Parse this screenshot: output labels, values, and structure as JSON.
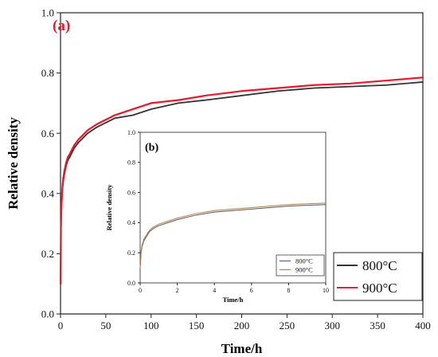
{
  "chart_data": [
    {
      "type": "line",
      "panel_label": "(a)",
      "xlabel": "Time/h",
      "ylabel": "Relative density",
      "xlim": [
        0,
        400
      ],
      "ylim": [
        0.0,
        1.0
      ],
      "xticks": [
        0,
        50,
        100,
        150,
        200,
        250,
        300,
        350,
        400
      ],
      "yticks": [
        0.0,
        0.2,
        0.4,
        0.6,
        0.8,
        1.0
      ],
      "grid": false,
      "legend_position": "bottom-right",
      "series": [
        {
          "name": "800°C",
          "color": "#333333",
          "x": [
            0,
            0.5,
            1,
            2,
            3,
            4,
            6,
            8,
            10,
            15,
            20,
            30,
            40,
            60,
            80,
            100,
            130,
            160,
            200,
            240,
            280,
            320,
            360,
            400
          ],
          "y": [
            0.1,
            0.28,
            0.35,
            0.41,
            0.44,
            0.46,
            0.49,
            0.51,
            0.52,
            0.55,
            0.57,
            0.6,
            0.62,
            0.65,
            0.66,
            0.68,
            0.7,
            0.71,
            0.725,
            0.74,
            0.75,
            0.755,
            0.76,
            0.77
          ]
        },
        {
          "name": "900°C",
          "color": "#e8192c",
          "x": [
            0,
            0.5,
            1,
            2,
            3,
            4,
            6,
            8,
            10,
            15,
            20,
            30,
            40,
            60,
            80,
            100,
            130,
            160,
            200,
            240,
            280,
            320,
            360,
            400
          ],
          "y": [
            0.1,
            0.29,
            0.36,
            0.42,
            0.45,
            0.47,
            0.5,
            0.52,
            0.53,
            0.56,
            0.58,
            0.61,
            0.63,
            0.66,
            0.68,
            0.7,
            0.71,
            0.725,
            0.74,
            0.75,
            0.76,
            0.765,
            0.775,
            0.785
          ]
        }
      ]
    },
    {
      "type": "line",
      "panel_label": "(b)",
      "xlabel": "Time/h",
      "ylabel": "Relative density",
      "xlim": [
        0,
        10
      ],
      "ylim": [
        0.0,
        1.0
      ],
      "xticks": [
        0,
        2,
        4,
        6,
        8,
        10
      ],
      "yticks": [
        0.0,
        0.2,
        0.4,
        0.6,
        0.8,
        1.0
      ],
      "grid": false,
      "legend_position": "bottom-right",
      "series": [
        {
          "name": "800°C",
          "color": "#555555",
          "x": [
            0,
            0.05,
            0.1,
            0.2,
            0.3,
            0.5,
            0.7,
            1,
            1.5,
            2,
            3,
            4,
            5,
            6,
            7,
            8,
            9,
            10
          ],
          "y": [
            0.1,
            0.2,
            0.24,
            0.28,
            0.3,
            0.34,
            0.36,
            0.38,
            0.4,
            0.42,
            0.45,
            0.47,
            0.48,
            0.49,
            0.5,
            0.51,
            0.515,
            0.52
          ]
        },
        {
          "name": "900°C",
          "color": "#b07a4a",
          "x": [
            0,
            0.05,
            0.1,
            0.2,
            0.3,
            0.5,
            0.7,
            1,
            1.5,
            2,
            3,
            4,
            5,
            6,
            7,
            8,
            9,
            10
          ],
          "y": [
            0.1,
            0.21,
            0.25,
            0.29,
            0.31,
            0.35,
            0.37,
            0.39,
            0.41,
            0.43,
            0.46,
            0.48,
            0.49,
            0.5,
            0.51,
            0.52,
            0.525,
            0.53
          ]
        }
      ]
    }
  ]
}
